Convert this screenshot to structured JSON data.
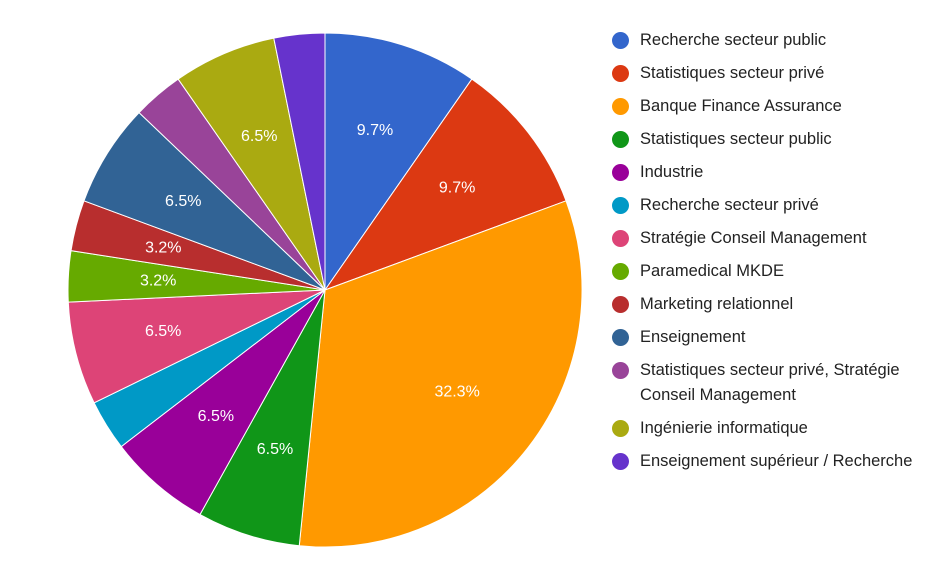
{
  "chart_data": {
    "type": "pie",
    "title": "",
    "legend_position": "right",
    "start_angle_deg": 0,
    "direction": "clockwise",
    "slices": [
      {
        "label": "Recherche secteur public",
        "value": 9.7,
        "display": "9.7%",
        "color": "#3366cc"
      },
      {
        "label": "Statistiques secteur privé",
        "value": 9.7,
        "display": "9.7%",
        "color": "#dc3912"
      },
      {
        "label": "Banque Finance Assurance",
        "value": 32.3,
        "display": "32.3%",
        "color": "#ff9900"
      },
      {
        "label": "Statistiques secteur public",
        "value": 6.5,
        "display": "6.5%",
        "color": "#109618"
      },
      {
        "label": "Industrie",
        "value": 6.5,
        "display": "6.5%",
        "color": "#990099"
      },
      {
        "label": "Recherche secteur privé",
        "value": 3.2,
        "display": "",
        "color": "#0099c6"
      },
      {
        "label": "Stratégie Conseil Management",
        "value": 6.5,
        "display": "6.5%",
        "color": "#dd4477"
      },
      {
        "label": "Paramedical MKDE",
        "value": 3.2,
        "display": "3.2%",
        "color": "#66aa00"
      },
      {
        "label": "Marketing relationnel",
        "value": 3.2,
        "display": "3.2%",
        "color": "#b82e2e"
      },
      {
        "label": "Enseignement",
        "value": 6.5,
        "display": "6.5%",
        "color": "#316395"
      },
      {
        "label": "Statistiques secteur privé, Stratégie Conseil Management",
        "value": 3.2,
        "display": "",
        "color": "#994499"
      },
      {
        "label": "Ingénierie informatique",
        "value": 6.5,
        "display": "6.5%",
        "color": "#aaaa11"
      },
      {
        "label": "Enseignement supérieur / Recherche",
        "value": 3.2,
        "display": "",
        "color": "#6633cc"
      }
    ]
  }
}
